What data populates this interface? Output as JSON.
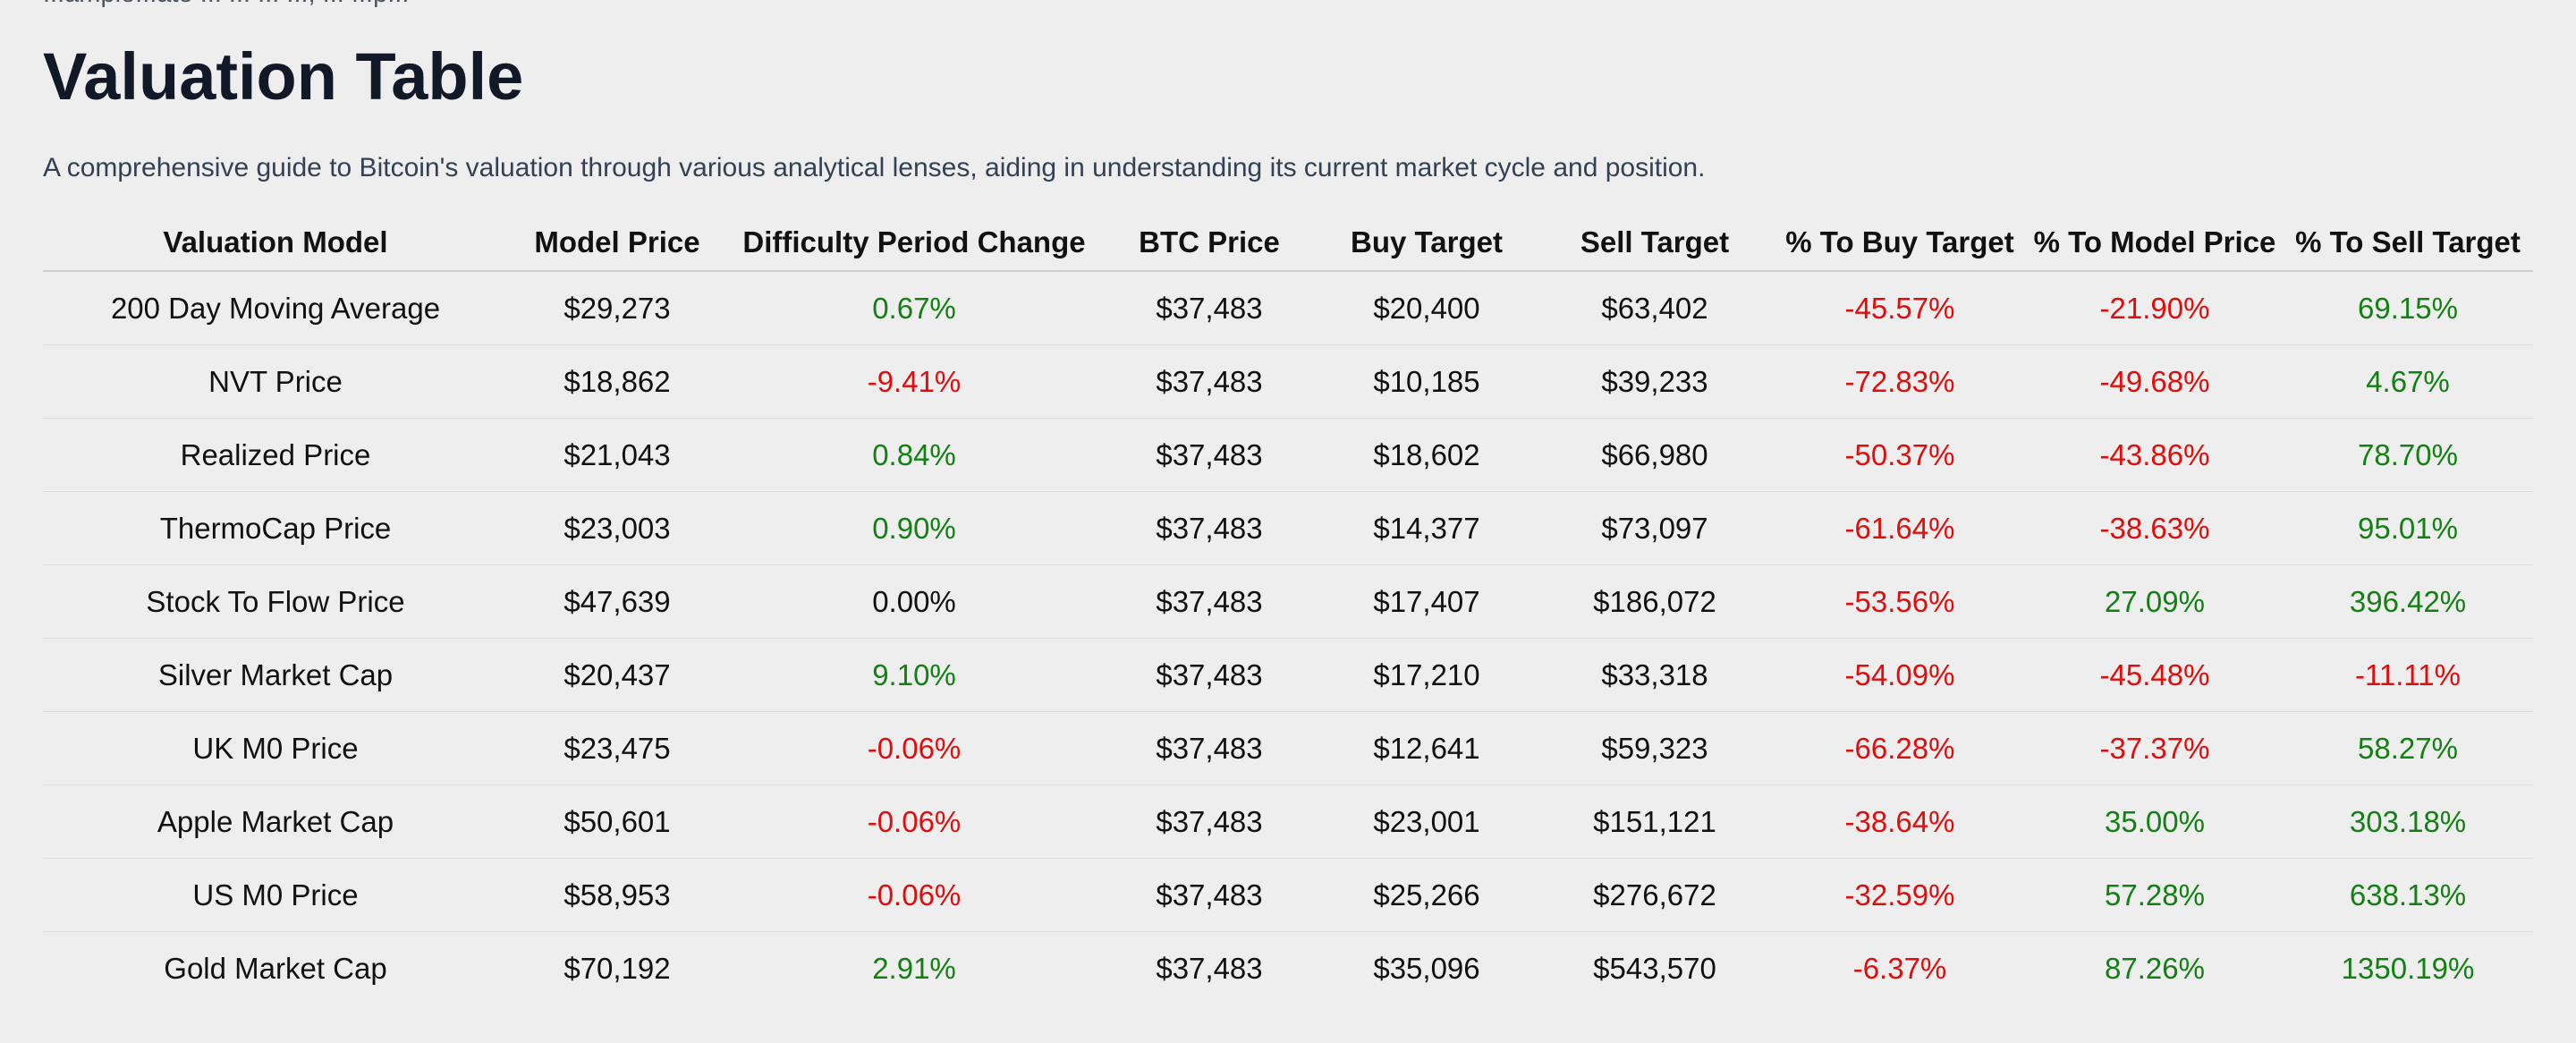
{
  "page": {
    "cut_line": "...ample...ate ...  ...  ...   ...,  ...  ...p...",
    "title": "Valuation Table",
    "description": "A comprehensive guide to Bitcoin's valuation through various analytical lenses, aiding in understanding its current market cycle and position."
  },
  "colors": {
    "positive": "#128012",
    "negative": "#e00d0d",
    "neutral": "#111111",
    "background": "#eeeeee"
  },
  "table": {
    "headers": [
      "Valuation Model",
      "Model Price",
      "Difficulty Period Change",
      "BTC Price",
      "Buy Target",
      "Sell Target",
      "% To Buy Target",
      "% To Model Price",
      "% To Sell Target"
    ],
    "rows": [
      {
        "model": "200 Day Moving Average",
        "model_price": "$29,273",
        "difficulty_change": "0.67%",
        "btc_price": "$37,483",
        "buy_target": "$20,400",
        "sell_target": "$63,402",
        "pct_buy": "-45.57%",
        "pct_model": "-21.90%",
        "pct_sell": "69.15%"
      },
      {
        "model": "NVT Price",
        "model_price": "$18,862",
        "difficulty_change": "-9.41%",
        "btc_price": "$37,483",
        "buy_target": "$10,185",
        "sell_target": "$39,233",
        "pct_buy": "-72.83%",
        "pct_model": "-49.68%",
        "pct_sell": "4.67%"
      },
      {
        "model": "Realized Price",
        "model_price": "$21,043",
        "difficulty_change": "0.84%",
        "btc_price": "$37,483",
        "buy_target": "$18,602",
        "sell_target": "$66,980",
        "pct_buy": "-50.37%",
        "pct_model": "-43.86%",
        "pct_sell": "78.70%"
      },
      {
        "model": "ThermoCap Price",
        "model_price": "$23,003",
        "difficulty_change": "0.90%",
        "btc_price": "$37,483",
        "buy_target": "$14,377",
        "sell_target": "$73,097",
        "pct_buy": "-61.64%",
        "pct_model": "-38.63%",
        "pct_sell": "95.01%"
      },
      {
        "model": "Stock To Flow Price",
        "model_price": "$47,639",
        "difficulty_change": "0.00%",
        "btc_price": "$37,483",
        "buy_target": "$17,407",
        "sell_target": "$186,072",
        "pct_buy": "-53.56%",
        "pct_model": "27.09%",
        "pct_sell": "396.42%"
      },
      {
        "model": "Silver Market Cap",
        "model_price": "$20,437",
        "difficulty_change": "9.10%",
        "btc_price": "$37,483",
        "buy_target": "$17,210",
        "sell_target": "$33,318",
        "pct_buy": "-54.09%",
        "pct_model": "-45.48%",
        "pct_sell": "-11.11%"
      },
      {
        "model": "UK M0 Price",
        "model_price": "$23,475",
        "difficulty_change": "-0.06%",
        "btc_price": "$37,483",
        "buy_target": "$12,641",
        "sell_target": "$59,323",
        "pct_buy": "-66.28%",
        "pct_model": "-37.37%",
        "pct_sell": "58.27%"
      },
      {
        "model": "Apple Market Cap",
        "model_price": "$50,601",
        "difficulty_change": "-0.06%",
        "btc_price": "$37,483",
        "buy_target": "$23,001",
        "sell_target": "$151,121",
        "pct_buy": "-38.64%",
        "pct_model": "35.00%",
        "pct_sell": "303.18%"
      },
      {
        "model": "US M0 Price",
        "model_price": "$58,953",
        "difficulty_change": "-0.06%",
        "btc_price": "$37,483",
        "buy_target": "$25,266",
        "sell_target": "$276,672",
        "pct_buy": "-32.59%",
        "pct_model": "57.28%",
        "pct_sell": "638.13%"
      },
      {
        "model": "Gold Market Cap",
        "model_price": "$70,192",
        "difficulty_change": "2.91%",
        "btc_price": "$37,483",
        "buy_target": "$35,096",
        "sell_target": "$543,570",
        "pct_buy": "-6.37%",
        "pct_model": "87.26%",
        "pct_sell": "1350.19%"
      }
    ]
  }
}
